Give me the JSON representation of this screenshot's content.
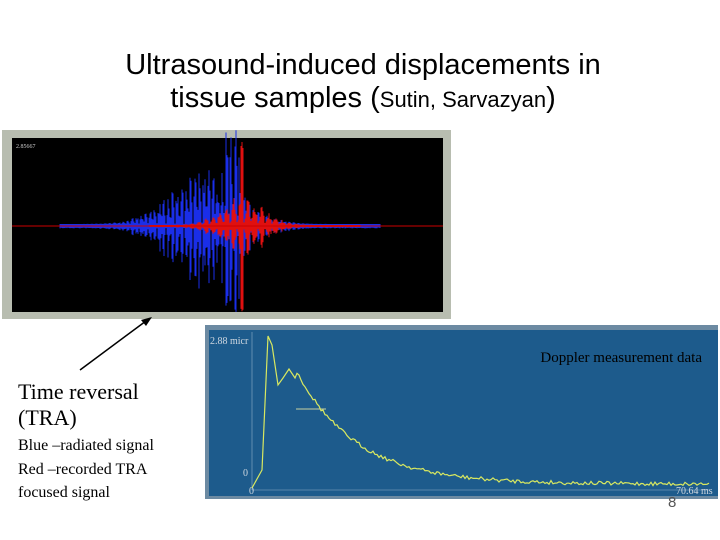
{
  "title": {
    "line1": "Ultrasound-induced displacements in",
    "line2": "tissue samples (",
    "authors": "Sutin, Sarvazyan",
    "close": ")"
  },
  "tra_panel": {
    "readout": "2.85667"
  },
  "doppler_panel": {
    "caption": "Doppler measurement data",
    "y_max": "2.88 micr",
    "y_min": "0",
    "x_min": "0",
    "x_max": "70.64 ms"
  },
  "legend": {
    "heading": [
      "Time reversal",
      "(TRA)"
    ],
    "notes": [
      "Blue –radiated signal",
      "Red –recorded TRA",
      "focused signal"
    ]
  },
  "page_number": "8"
}
